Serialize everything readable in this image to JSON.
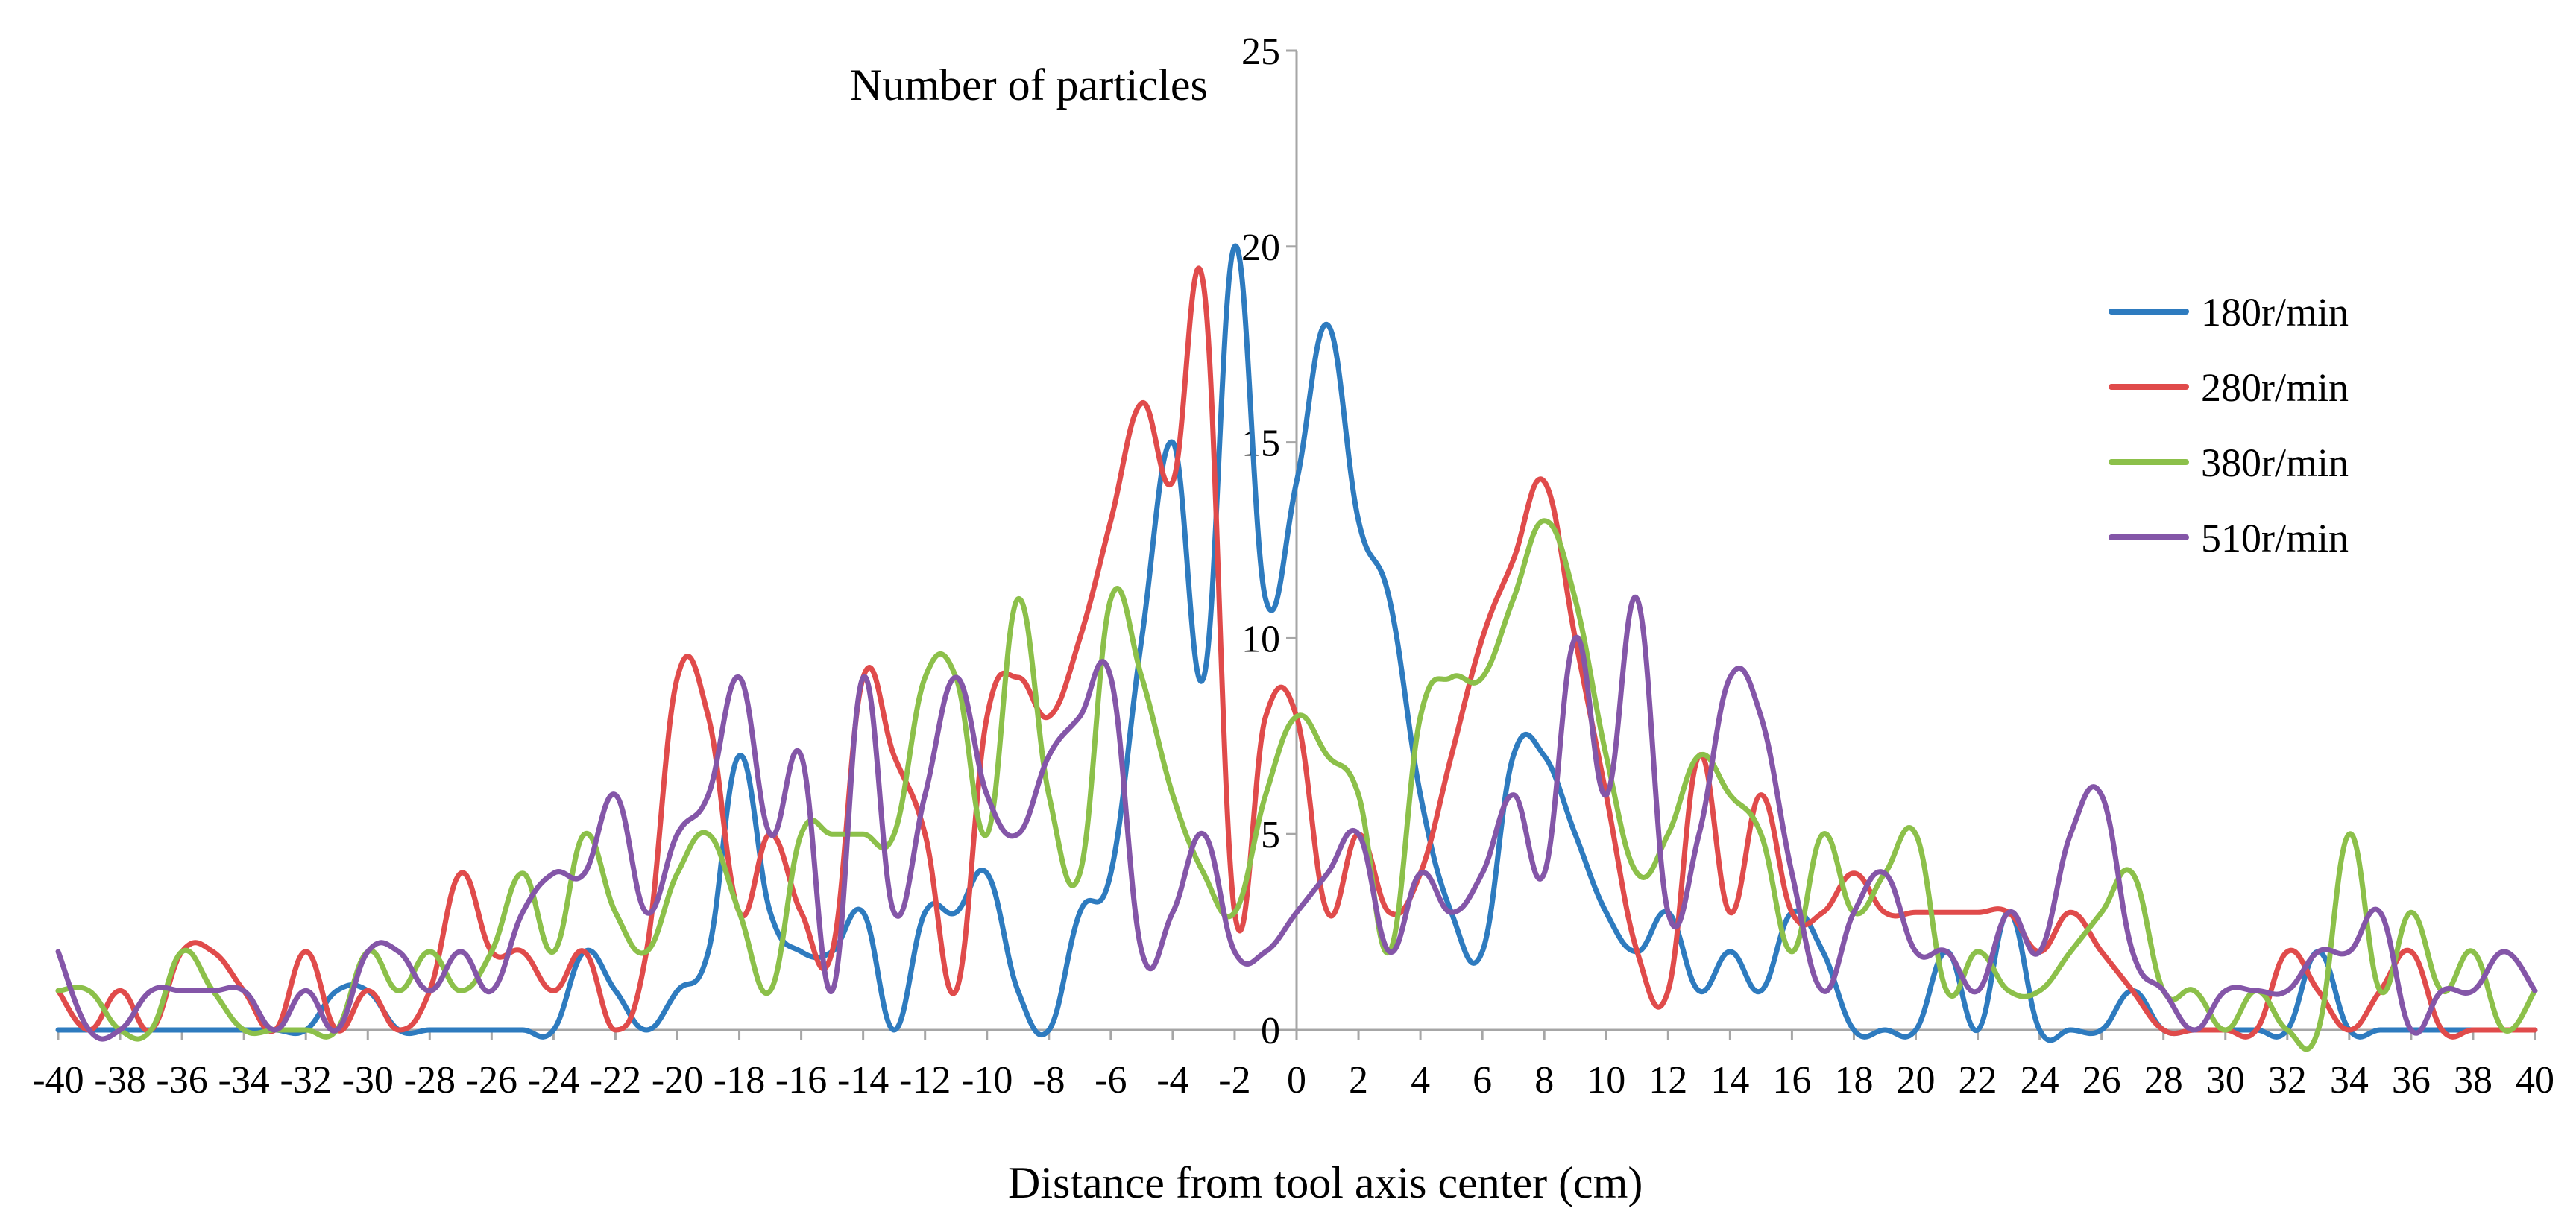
{
  "chart_data": {
    "type": "line",
    "title": "",
    "xlabel": "Distance from tool axis center (cm)",
    "ylabel": "Number of particles",
    "xlim": [
      -40,
      40
    ],
    "ylim": [
      0,
      25
    ],
    "x_ticks": [
      "-40",
      "-38",
      "-36",
      "-34",
      "-32",
      "-30",
      "-28",
      "-26",
      "-24",
      "-22",
      "-20",
      "-18",
      "-16",
      "-14",
      "-12",
      "-10",
      "-8",
      "-6",
      "-4",
      "-2",
      "0",
      "2",
      "4",
      "6",
      "8",
      "10",
      "12",
      "14",
      "16",
      "18",
      "20",
      "22",
      "24",
      "26",
      "28",
      "30",
      "32",
      "34",
      "36",
      "38",
      "40"
    ],
    "y_ticks": [
      "0",
      "5",
      "10",
      "15",
      "20",
      "25"
    ],
    "grid": false,
    "legend_position": "right",
    "x": [
      -40,
      -39,
      -38,
      -37,
      -36,
      -35,
      -34,
      -33,
      -32,
      -31,
      -30,
      -29,
      -28,
      -27,
      -26,
      -25,
      -24,
      -23,
      -22,
      -21,
      -20,
      -19,
      -18,
      -17,
      -16,
      -15,
      -14,
      -13,
      -12,
      -11,
      -10,
      -9,
      -8,
      -7,
      -6,
      -5,
      -4,
      -3,
      -2,
      -1,
      0,
      1,
      2,
      3,
      4,
      5,
      6,
      7,
      8,
      9,
      10,
      11,
      12,
      13,
      14,
      15,
      16,
      17,
      18,
      19,
      20,
      21,
      22,
      23,
      24,
      25,
      26,
      27,
      28,
      29,
      30,
      31,
      32,
      33,
      34,
      35,
      36,
      37,
      38,
      39,
      40
    ],
    "series": [
      {
        "name": "180r/min",
        "color": "#2e7bbf",
        "values": [
          0,
          0,
          0,
          0,
          0,
          0,
          0,
          0,
          0,
          1,
          1,
          0,
          0,
          0,
          0,
          0,
          0,
          2,
          1,
          0,
          1,
          2,
          7,
          3,
          2,
          2,
          3,
          0,
          3,
          3,
          4,
          1,
          0,
          3,
          4,
          10,
          15,
          9,
          20,
          11,
          14,
          18,
          13,
          11,
          6,
          3,
          2,
          7,
          7,
          5,
          3,
          2,
          3,
          1,
          2,
          1,
          3,
          2,
          0,
          0,
          0,
          2,
          0,
          3,
          0,
          0,
          0,
          1,
          0,
          0,
          0,
          0,
          0,
          2,
          0,
          0,
          0,
          0,
          0,
          0,
          0
        ]
      },
      {
        "name": "280r/min",
        "color": "#e04b4b",
        "values": [
          1,
          0,
          1,
          0,
          2,
          2,
          1,
          0,
          2,
          0,
          1,
          0,
          1,
          4,
          2,
          2,
          1,
          2,
          0,
          2,
          9,
          8,
          3,
          5,
          3,
          2,
          9,
          7,
          5,
          1,
          8,
          9,
          8,
          10,
          13,
          16,
          14,
          19,
          3,
          8,
          8,
          3,
          5,
          3,
          4,
          7,
          10,
          12,
          14,
          10,
          6,
          2,
          1,
          7,
          3,
          6,
          3,
          3,
          4,
          3,
          3,
          3,
          3,
          3,
          2,
          3,
          2,
          1,
          0,
          0,
          0,
          0,
          2,
          1,
          0,
          1,
          2,
          0,
          0,
          0,
          0
        ]
      },
      {
        "name": "380r/min",
        "color": "#8cc04a",
        "values": [
          1,
          1,
          0,
          0,
          2,
          1,
          0,
          0,
          0,
          0,
          2,
          1,
          2,
          1,
          2,
          4,
          2,
          5,
          3,
          2,
          4,
          5,
          3,
          1,
          5,
          5,
          5,
          5,
          9,
          9,
          5,
          11,
          6,
          4,
          11,
          9,
          6,
          4,
          3,
          6,
          8,
          7,
          6,
          2,
          8,
          9,
          9,
          11,
          13,
          11,
          7,
          4,
          5,
          7,
          6,
          5,
          2,
          5,
          3,
          4,
          5,
          1,
          2,
          1,
          1,
          2,
          3,
          4,
          1,
          1,
          0,
          1,
          0,
          0,
          5,
          1,
          3,
          1,
          2,
          0,
          1
        ]
      },
      {
        "name": "510r/min",
        "color": "#8456a8",
        "values": [
          2,
          0,
          0,
          1,
          1,
          1,
          1,
          0,
          1,
          0,
          2,
          2,
          1,
          2,
          1,
          3,
          4,
          4,
          6,
          3,
          5,
          6,
          9,
          5,
          7,
          1,
          9,
          3,
          6,
          9,
          6,
          5,
          7,
          8,
          9,
          2,
          3,
          5,
          2,
          2,
          3,
          4,
          5,
          2,
          4,
          3,
          4,
          6,
          4,
          10,
          6,
          11,
          3,
          5,
          9,
          8,
          4,
          1,
          3,
          4,
          2,
          2,
          1,
          3,
          2,
          5,
          6,
          2,
          1,
          0,
          1,
          1,
          1,
          2,
          2,
          3,
          0,
          1,
          1,
          2,
          1
        ]
      }
    ]
  }
}
